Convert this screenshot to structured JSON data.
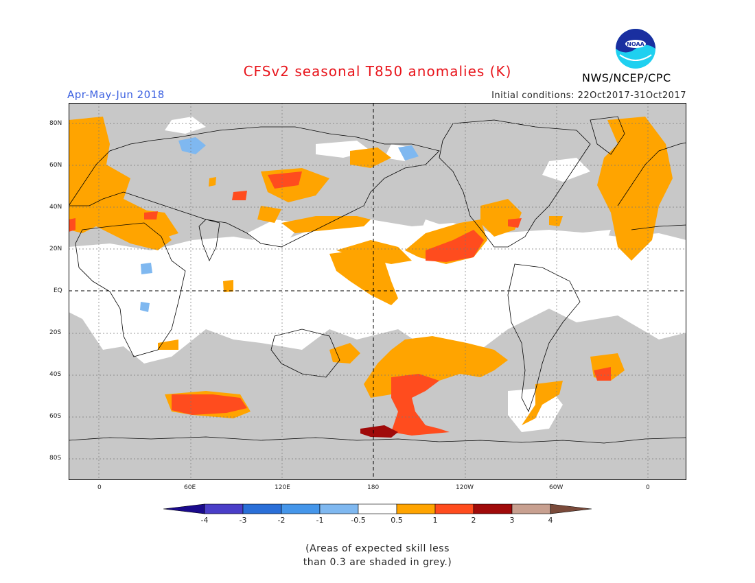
{
  "header": {
    "title": "CFSv2 seasonal T850 anomalies (K)",
    "season": "Apr-May-Jun 2018",
    "initial_conditions": "Initial conditions: 22Oct2017-31Oct2017",
    "agency": "NWS/NCEP/CPC",
    "logo_text": "NOAA"
  },
  "axes": {
    "lat_labels": [
      "80N",
      "60N",
      "40N",
      "20N",
      "EQ",
      "20S",
      "40S",
      "60S",
      "80S"
    ],
    "lon_labels": [
      "0",
      "60E",
      "120E",
      "180",
      "120W",
      "60W",
      "0"
    ]
  },
  "legend": {
    "ticks": [
      "-4",
      "-3",
      "-2",
      "-1",
      "-0.5",
      "0.5",
      "1",
      "2",
      "3",
      "4"
    ],
    "colors": [
      "#1a0a8c",
      "#4a3ec8",
      "#2a6fd8",
      "#4596ea",
      "#7fb8f0",
      "#ffffff",
      "#ffa400",
      "#ff4c1e",
      "#a00a0a",
      "#c8a090",
      "#7a4a3a"
    ],
    "grey_color": "#c8c8c8"
  },
  "note": {
    "line1": "(Areas of expected skill less",
    "line2": "than 0.3 are shaded in grey.)"
  }
}
